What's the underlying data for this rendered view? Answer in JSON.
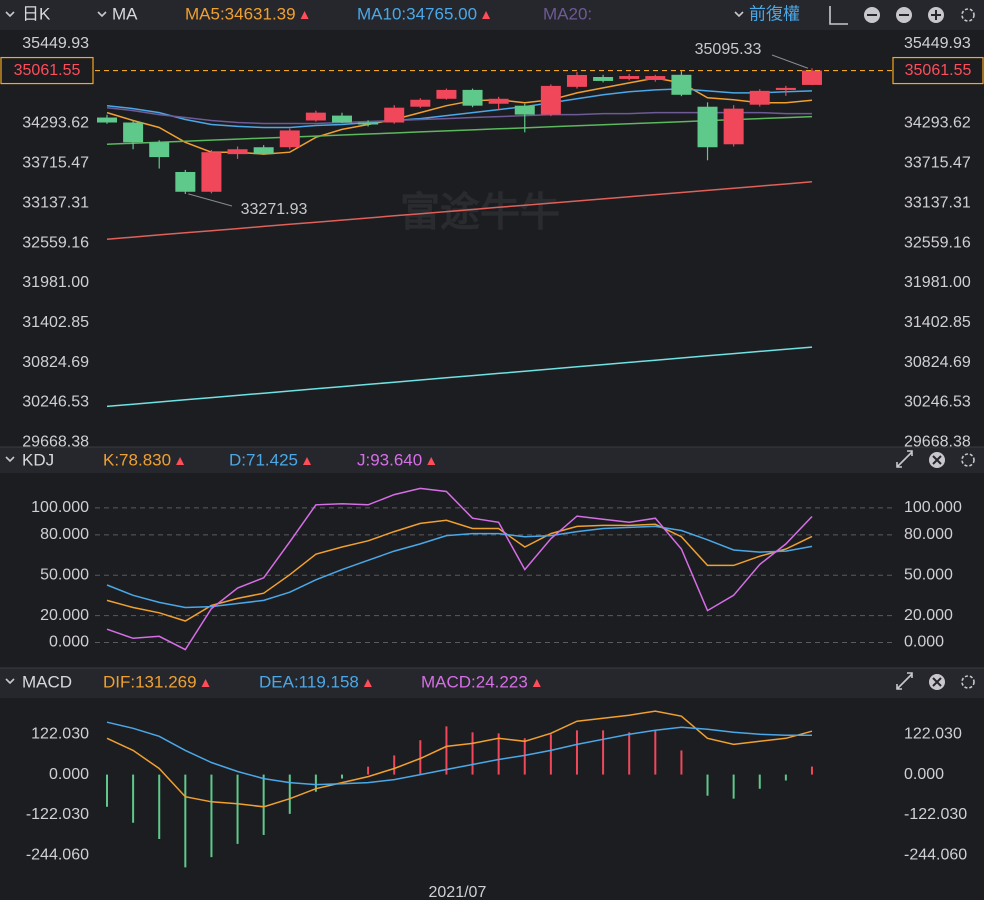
{
  "chart_data": [
    {
      "type": "candlestick",
      "period": "日K",
      "indicator": "MA",
      "adjust": "前復權",
      "watermark": "富途牛牛",
      "categories": [
        null,
        null,
        null,
        null,
        null,
        null,
        null,
        null,
        null,
        null,
        null,
        null,
        null,
        "2021/07",
        null,
        null,
        null,
        null,
        null,
        null,
        null,
        null,
        null,
        null,
        null,
        null,
        null,
        null
      ],
      "open": [
        34380,
        34308,
        34021,
        33590,
        33303,
        33849,
        33949,
        33949,
        34337,
        34408,
        34308,
        34308,
        34537,
        34652,
        34781,
        34580,
        34552,
        34423,
        34825,
        34968,
        34940,
        34925,
        35000,
        34537,
        33992,
        34566,
        34780,
        34853
      ],
      "high": [
        34420,
        34340,
        34050,
        33620,
        33910,
        33960,
        33980,
        34220,
        34480,
        34450,
        34340,
        34560,
        34660,
        34800,
        34800,
        34680,
        34580,
        34860,
        35040,
        35000,
        35010,
        35000,
        35054,
        34600,
        34560,
        34790,
        34840,
        35095.33
      ],
      "low": [
        34290,
        33920,
        33640,
        33271.93,
        33280,
        33780,
        33840,
        33920,
        34320,
        34300,
        34250,
        34290,
        34520,
        34640,
        34530,
        34500,
        34165,
        34400,
        34800,
        34890,
        34920,
        34900,
        34690,
        33760,
        33960,
        34540,
        34695,
        34850
      ],
      "close": [
        34308,
        34021,
        33806,
        33303,
        33877,
        33920,
        33849,
        34193,
        34451,
        34308,
        34279,
        34523,
        34638,
        34781,
        34552,
        34652,
        34423,
        34839,
        34997,
        34911,
        34982,
        34982,
        34710,
        33949,
        34509,
        34767,
        34810,
        35061.55
      ],
      "up_color": "#f0475a",
      "down_color": "#5ec98a",
      "last_price_color": "#f5a623",
      "series": [
        {
          "name": "MA5:34631.39",
          "color": "#f0a030",
          "values": [
            34452,
            34337,
            34236,
            34021,
            33877,
            33877,
            33849,
            33877,
            34093,
            34208,
            34279,
            34351,
            34452,
            34552,
            34624,
            34638,
            34595,
            34638,
            34738,
            34810,
            34882,
            34954,
            34882,
            34667,
            34638,
            34595,
            34595,
            34631
          ]
        },
        {
          "name": "MA10:34765.00",
          "color": "#4aa8e8",
          "values": [
            34552,
            34509,
            34452,
            34351,
            34279,
            34251,
            34236,
            34236,
            34265,
            34279,
            34308,
            34337,
            34365,
            34408,
            34452,
            34495,
            34538,
            34595,
            34652,
            34710,
            34753,
            34781,
            34796,
            34767,
            34738,
            34738,
            34753,
            34767
          ]
        },
        {
          "name": "MA20:",
          "color": "#6e5a96",
          "values": [
            34523,
            34480,
            34423,
            34380,
            34337,
            34308,
            34294,
            34294,
            34294,
            34308,
            34322,
            34337,
            34351,
            34365,
            34380,
            34394,
            34408,
            34423,
            34423,
            34437,
            34437,
            34452,
            34452,
            34452,
            34452,
            34452,
            34437,
            34437
          ]
        },
        {
          "color": "#5cb85c",
          "values": [
            33992,
            34007,
            34022,
            34037,
            34052,
            34067,
            34081,
            34096,
            34111,
            34126,
            34141,
            34156,
            34171,
            34186,
            34201,
            34216,
            34230,
            34245,
            34260,
            34275,
            34290,
            34305,
            34320,
            34335,
            34350,
            34365,
            34379,
            34394
          ]
        },
        {
          "color": "#e0605a",
          "values": [
            32615,
            32646,
            32677,
            32707,
            32738,
            32769,
            32800,
            32831,
            32861,
            32892,
            32923,
            32954,
            32985,
            33015,
            33046,
            33077,
            33108,
            33139,
            33169,
            33200,
            33231,
            33262,
            33293,
            33323,
            33354,
            33385,
            33416,
            33447
          ]
        },
        {
          "color": "#6fe3e3",
          "values": [
            30189,
            30221,
            30253,
            30285,
            30317,
            30349,
            30380,
            30412,
            30444,
            30476,
            30508,
            30540,
            30572,
            30604,
            30636,
            30668,
            30699,
            30731,
            30763,
            30795,
            30827,
            30859,
            30891,
            30923,
            30955,
            30987,
            31018,
            31050
          ]
        }
      ],
      "ylim": [
        29600,
        35650
      ],
      "yticks": [
        35449.93,
        34293.62,
        33715.47,
        33137.31,
        32559.16,
        {
          "value": 31981,
          "label": "31981.00"
        },
        31402.85,
        30824.69,
        30246.53,
        29668.38
      ],
      "grid": false
    },
    {
      "type": "line",
      "title": "KDJ",
      "series": [
        {
          "name": "K:78.830",
          "color": "#f0a030",
          "values": [
            31.3,
            26,
            22.1,
            16,
            27.5,
            32.8,
            36.6,
            50.4,
            65.6,
            71,
            75.6,
            82.4,
            88.5,
            90.8,
            84.7,
            84.7,
            71,
            80.9,
            86.3,
            87,
            87,
            87.8,
            78.6,
            57.3,
            57.3,
            64.1,
            69.5,
            78.83
          ]
        },
        {
          "name": "D:71.425",
          "color": "#4aa8e8",
          "values": [
            42.7,
            35.1,
            29.8,
            26,
            26.7,
            29,
            31.3,
            37.4,
            46.6,
            54.2,
            61.1,
            67.9,
            73.3,
            79.4,
            80.9,
            80.9,
            78.6,
            79.4,
            82.4,
            84.7,
            85.5,
            86.3,
            83.2,
            76.3,
            68.7,
            67.2,
            67.9,
            71.425
          ]
        },
        {
          "name": "J:93.640",
          "color": "#d66ee6",
          "values": [
            9.9,
            3.1,
            4.6,
            -5.3,
            25.2,
            40.5,
            48.1,
            74.8,
            102.3,
            103.1,
            102.3,
            109.9,
            114.5,
            112.2,
            92.4,
            89.3,
            54.2,
            77.1,
            93.9,
            91.6,
            89.3,
            92.4,
            69.5,
            23.7,
            35.1,
            58,
            73.3,
            93.64
          ]
        }
      ],
      "ylim": [
        -14.5,
        126.7
      ],
      "yticks": [
        {
          "value": 100,
          "label": "100.000"
        },
        {
          "value": 80,
          "label": "80.000"
        },
        {
          "value": 50,
          "label": "50.000"
        },
        {
          "value": 20,
          "label": "20.000"
        },
        {
          "value": 0,
          "label": "0.000"
        }
      ],
      "grid": true
    },
    {
      "type": "macd",
      "title": "MACD",
      "series": [
        {
          "name": "DIF:131.269",
          "color": "#f0a030",
          "values": [
            109.8,
            73.2,
            18.3,
            -67.1,
            -82.4,
            -88.5,
            -97.6,
            -73.2,
            -42.7,
            -24.4,
            -6.1,
            18.3,
            48.8,
            85.4,
            94.6,
            109.8,
            100.7,
            125.1,
            161.7,
            170.8,
            180,
            192.2,
            176.9,
            109.8,
            91.5,
            100.7,
            109.8,
            131.269
          ]
        },
        {
          "name": "DEA:119.158",
          "color": "#4aa8e8",
          "values": [
            158.6,
            140.3,
            115.9,
            73.2,
            36.6,
            9.2,
            -12.2,
            -24.4,
            -30.5,
            -27.5,
            -24.4,
            -15.3,
            0,
            15.3,
            30.5,
            45.8,
            58,
            73.2,
            91.5,
            106.8,
            122,
            134.2,
            143.4,
            137.3,
            128.1,
            122,
            119,
            119.158
          ]
        },
        {
          "name": "MACD:24.223",
          "color": "#d66ee6",
          "kind": "bar",
          "up_color": "#f0475a",
          "down_color": "#5ec98a",
          "values": [
            -97.6,
            -146,
            -195,
            -281,
            -250,
            -210,
            -183,
            -119,
            -52,
            -12,
            24,
            58,
            104,
            146,
            128,
            125,
            110,
            122,
            134,
            134,
            128,
            134,
            73,
            -64,
            -73,
            -43,
            -18,
            24.223
          ]
        }
      ],
      "ylim": [
        -380,
        232
      ],
      "yticks": [
        {
          "value": 122.03,
          "label": "122.030"
        },
        {
          "value": 0,
          "label": "0.000"
        },
        {
          "value": -122.03,
          "label": "-122.030"
        },
        {
          "value": -244.06,
          "label": "-244.060"
        }
      ],
      "grid": false
    }
  ]
}
